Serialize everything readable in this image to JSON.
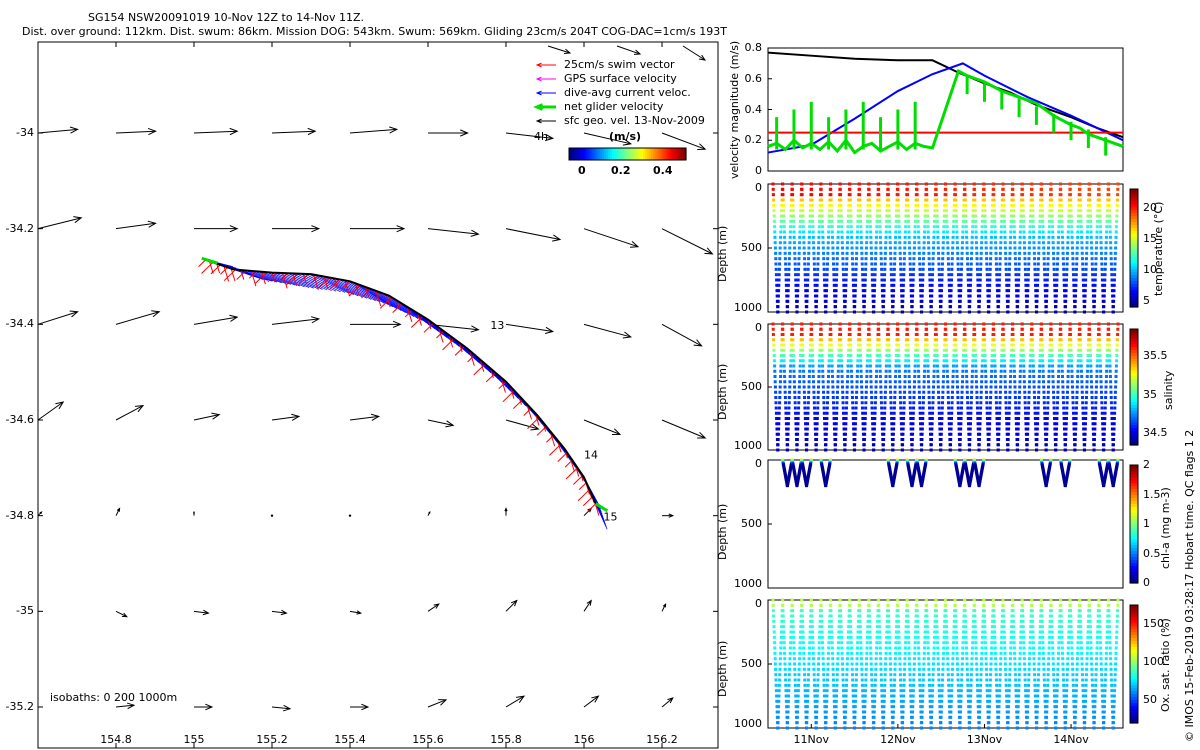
{
  "header": {
    "line1": "SG154 NSW20091019 10-Nov 12Z to 14-Nov 11Z.",
    "line2": "Dist. over ground: 112km. Dist. swum: 86km. Mission DOG: 543km. Swum: 569km. Gliding 23cm/s 204T COG-DAC=1cm/s 193T"
  },
  "credit": "© IMOS 15-Feb-2019 03:28:17 Hobart time. QC flags 1  2",
  "colors": {
    "swim": "#ff0000",
    "gps": "#ff00ff",
    "dac": "#0000ff",
    "net": "#00e000",
    "geo": "#000000"
  },
  "chart_data": [
    {
      "type": "map",
      "name": "track-map",
      "xlim": [
        154.6,
        156.35
      ],
      "ylim": [
        -35.25,
        -33.85
      ],
      "xticks": [
        "154.8",
        "155",
        "155.2",
        "155.4",
        "155.6",
        "155.8",
        "156",
        "156.2"
      ],
      "xtick_values": [
        154.8,
        155.0,
        155.2,
        155.4,
        155.6,
        155.8,
        156.0,
        156.2
      ],
      "yticks": [
        "-34",
        "-34.2",
        "-34.4",
        "-34.6",
        "-34.8",
        "-35",
        "-35.2"
      ],
      "ytick_values": [
        -34.0,
        -34.2,
        -34.4,
        -34.6,
        -34.8,
        -35.0,
        -35.2
      ],
      "isobaths_label": "isobaths: 0   200  1000m",
      "legend": [
        "25cm/s swim vector",
        "GPS surface velocity",
        "dive-avg current veloc.",
        "net glider velocity",
        "sfc geo. vel. 13-Nov-2009"
      ],
      "colorbar": {
        "label": "(m/s)",
        "ticks": [
          "0",
          "0.2",
          "0.4"
        ],
        "tick_values": [
          0,
          0.2,
          0.4
        ],
        "range": [
          0,
          0.5
        ],
        "extra_label": "4h"
      },
      "track": [
        [
          155.03,
          -34.265
        ],
        [
          155.1,
          -34.285
        ],
        [
          155.2,
          -34.292
        ],
        [
          155.3,
          -34.295
        ],
        [
          155.4,
          -34.31
        ],
        [
          155.5,
          -34.34
        ],
        [
          155.6,
          -34.39
        ],
        [
          155.7,
          -34.45
        ],
        [
          155.8,
          -34.52
        ],
        [
          155.88,
          -34.59
        ],
        [
          155.95,
          -34.66
        ],
        [
          156.0,
          -34.72
        ],
        [
          156.03,
          -34.775
        ]
      ],
      "day_labels": [
        {
          "text": "13",
          "lon": 155.76,
          "lat": -34.41
        },
        {
          "text": "14",
          "lon": 156.0,
          "lat": -34.68
        },
        {
          "text": "15",
          "lon": 156.05,
          "lat": -34.81
        }
      ],
      "geo_vectors": [
        [
          154.6,
          -34.0,
          0.22,
          0.02
        ],
        [
          154.8,
          -34.0,
          0.22,
          0.01
        ],
        [
          155.0,
          -34.0,
          0.24,
          0.01
        ],
        [
          155.2,
          -34.0,
          0.24,
          0.01
        ],
        [
          155.4,
          -34.0,
          0.26,
          0.02
        ],
        [
          155.6,
          -34.0,
          0.22,
          0.0
        ],
        [
          155.8,
          -34.0,
          0.26,
          -0.03
        ],
        [
          156.0,
          -34.0,
          0.26,
          -0.06
        ],
        [
          156.2,
          -34.0,
          0.24,
          -0.09
        ],
        [
          154.6,
          -34.2,
          0.24,
          0.06
        ],
        [
          154.8,
          -34.2,
          0.22,
          0.03
        ],
        [
          155.0,
          -34.2,
          0.24,
          0.0
        ],
        [
          155.2,
          -34.2,
          0.26,
          0.0
        ],
        [
          155.4,
          -34.2,
          0.3,
          0.0
        ],
        [
          155.6,
          -34.2,
          0.28,
          -0.03
        ],
        [
          155.8,
          -34.2,
          0.3,
          -0.06
        ],
        [
          156.0,
          -34.2,
          0.3,
          -0.1
        ],
        [
          156.2,
          -34.2,
          0.28,
          -0.14
        ],
        [
          154.6,
          -34.4,
          0.22,
          0.07
        ],
        [
          154.8,
          -34.4,
          0.24,
          0.07
        ],
        [
          155.0,
          -34.4,
          0.24,
          0.04
        ],
        [
          155.2,
          -34.4,
          0.26,
          0.03
        ],
        [
          155.4,
          -34.4,
          0.28,
          0.0
        ],
        [
          155.6,
          -34.4,
          0.28,
          -0.03
        ],
        [
          155.8,
          -34.4,
          0.26,
          -0.04
        ],
        [
          156.0,
          -34.4,
          0.26,
          -0.07
        ],
        [
          156.2,
          -34.4,
          0.22,
          -0.12
        ],
        [
          154.6,
          -34.6,
          0.14,
          0.1
        ],
        [
          154.8,
          -34.6,
          0.15,
          0.08
        ],
        [
          155.0,
          -34.6,
          0.14,
          0.03
        ],
        [
          155.2,
          -34.6,
          0.15,
          0.02
        ],
        [
          155.4,
          -34.6,
          0.16,
          0.02
        ],
        [
          155.6,
          -34.6,
          0.14,
          -0.03
        ],
        [
          155.8,
          -34.6,
          0.18,
          -0.05
        ],
        [
          156.0,
          -34.6,
          0.2,
          -0.08
        ],
        [
          156.2,
          -34.6,
          0.24,
          -0.1
        ],
        [
          154.6,
          -34.8,
          0.02,
          0.02
        ],
        [
          154.8,
          -34.8,
          0.02,
          0.04
        ],
        [
          155.0,
          -34.8,
          0.0,
          0.02
        ],
        [
          155.2,
          -34.8,
          0.01,
          -0.01
        ],
        [
          155.4,
          -34.8,
          0.01,
          -0.01
        ],
        [
          155.6,
          -34.8,
          0.01,
          0.02
        ],
        [
          155.8,
          -34.8,
          0.0,
          0.04
        ],
        [
          156.0,
          -34.8,
          0.04,
          0.04
        ],
        [
          156.2,
          -34.8,
          0.06,
          0.0
        ],
        [
          154.8,
          -35.0,
          0.06,
          -0.03
        ],
        [
          155.0,
          -35.0,
          0.08,
          -0.01
        ],
        [
          155.2,
          -35.0,
          0.08,
          -0.01
        ],
        [
          155.4,
          -35.0,
          0.06,
          -0.01
        ],
        [
          155.6,
          -35.0,
          0.06,
          0.04
        ],
        [
          155.8,
          -35.0,
          0.06,
          0.06
        ],
        [
          156.0,
          -35.0,
          0.04,
          0.06
        ],
        [
          156.2,
          -35.0,
          0.02,
          0.04
        ],
        [
          154.8,
          -35.2,
          0.1,
          0.01
        ],
        [
          155.0,
          -35.2,
          0.1,
          0.0
        ],
        [
          155.2,
          -35.2,
          0.1,
          -0.01
        ],
        [
          155.4,
          -35.2,
          0.1,
          0.0
        ],
        [
          155.6,
          -35.2,
          0.1,
          0.04
        ],
        [
          155.8,
          -35.2,
          0.1,
          0.06
        ],
        [
          156.0,
          -35.2,
          0.08,
          0.06
        ],
        [
          156.2,
          -35.2,
          0.06,
          0.05
        ]
      ]
    },
    {
      "type": "line",
      "name": "velocity-panel",
      "ylabel": "velocity magnitude (m/s)",
      "xlim": [
        10.5,
        14.6
      ],
      "ylim": [
        0,
        0.8
      ],
      "yticks": [
        "0",
        "0.2",
        "0.4",
        "0.6",
        "0.8"
      ],
      "ytick_values": [
        0,
        0.2,
        0.4,
        0.6,
        0.8
      ],
      "series": [
        {
          "name": "sfc geo. vel.",
          "color": "#000000",
          "x": [
            10.5,
            11.0,
            11.5,
            12.0,
            12.4,
            12.7,
            13.0,
            13.3,
            13.6,
            14.0,
            14.3,
            14.6
          ],
          "y": [
            0.77,
            0.75,
            0.73,
            0.72,
            0.72,
            0.64,
            0.57,
            0.51,
            0.43,
            0.35,
            0.28,
            0.22
          ]
        },
        {
          "name": "dive-avg current veloc.",
          "color": "#0000ff",
          "x": [
            10.5,
            11.0,
            11.5,
            12.0,
            12.4,
            12.75,
            13.0,
            13.5,
            14.0,
            14.3,
            14.6
          ],
          "y": [
            0.12,
            0.17,
            0.34,
            0.52,
            0.63,
            0.7,
            0.62,
            0.48,
            0.36,
            0.28,
            0.2
          ]
        },
        {
          "name": "25cm/s swim vector",
          "color": "#ff0000",
          "x": [
            10.5,
            14.6
          ],
          "y": [
            0.25,
            0.25
          ]
        },
        {
          "name": "net glider velocity",
          "color": "#00dd00",
          "x": [
            10.5,
            10.6,
            10.7,
            10.8,
            10.9,
            11.0,
            11.1,
            11.2,
            11.3,
            11.4,
            11.5,
            11.6,
            11.7,
            11.8,
            11.9,
            12.0,
            12.1,
            12.2,
            12.3,
            12.4,
            12.7,
            12.8,
            12.9,
            13.0,
            13.1,
            13.2,
            13.3,
            13.4,
            13.5,
            13.6,
            13.7,
            13.8,
            13.9,
            14.0,
            14.1,
            14.2,
            14.3,
            14.4,
            14.5,
            14.6
          ],
          "y": [
            0.16,
            0.18,
            0.14,
            0.2,
            0.15,
            0.18,
            0.14,
            0.19,
            0.13,
            0.2,
            0.12,
            0.16,
            0.18,
            0.13,
            0.16,
            0.19,
            0.14,
            0.18,
            0.16,
            0.15,
            0.65,
            0.62,
            0.6,
            0.58,
            0.55,
            0.52,
            0.5,
            0.48,
            0.46,
            0.44,
            0.4,
            0.36,
            0.33,
            0.3,
            0.28,
            0.24,
            0.22,
            0.2,
            0.18,
            0.16
          ]
        }
      ]
    },
    {
      "type": "scatter",
      "name": "temperature-section",
      "ylabel": "Depth (m)",
      "yticks": [
        "0",
        "500",
        "1000"
      ],
      "ytick_values": [
        0,
        500,
        1000
      ],
      "colorbar_label": "temperature (°C)",
      "colorbar_ticks": [
        "5",
        "10",
        "15",
        "20"
      ],
      "colorbar_values": [
        5,
        10,
        15,
        20
      ],
      "colorbar_range": [
        4,
        23
      ],
      "profiles": 36,
      "surface_value": 21,
      "deep_value": 5
    },
    {
      "type": "scatter",
      "name": "salinity-section",
      "ylabel": "Depth (m)",
      "yticks": [
        "0",
        "500",
        "1000"
      ],
      "ytick_values": [
        0,
        500,
        1000
      ],
      "colorbar_label": "salinity",
      "colorbar_ticks": [
        "34.5",
        "35",
        "35.5"
      ],
      "colorbar_values": [
        34.5,
        35,
        35.5
      ],
      "colorbar_range": [
        34.35,
        35.85
      ],
      "profiles": 36,
      "surface_value": 35.55,
      "deep_value": 34.45
    },
    {
      "type": "scatter",
      "name": "chla-section",
      "ylabel": "Depth (m)",
      "yticks": [
        "0",
        "500",
        "1000"
      ],
      "ytick_values": [
        0,
        500,
        1000
      ],
      "colorbar_label": "chl-a (mg m-3)",
      "colorbar_ticks": [
        "0",
        "0.5",
        "1",
        "1.5",
        "2"
      ],
      "colorbar_values": [
        0,
        0.5,
        1,
        1.5,
        2
      ],
      "colorbar_range": [
        0,
        2
      ],
      "profiles": 36,
      "max_depth": 200
    },
    {
      "type": "scatter",
      "name": "oxygen-section",
      "ylabel": "Depth (m)",
      "yticks": [
        "0",
        "500",
        "1000"
      ],
      "ytick_values": [
        0,
        500,
        1000
      ],
      "colorbar_label": "Ox. sat. ratio (%)",
      "colorbar_ticks": [
        "50",
        "100",
        "150"
      ],
      "colorbar_values": [
        50,
        100,
        150
      ],
      "colorbar_range": [
        20,
        175
      ],
      "profiles": 36,
      "xticks": [
        "11Nov",
        "12Nov",
        "13Nov",
        "14Nov"
      ],
      "xtick_values": [
        11,
        12,
        13,
        14
      ]
    }
  ]
}
